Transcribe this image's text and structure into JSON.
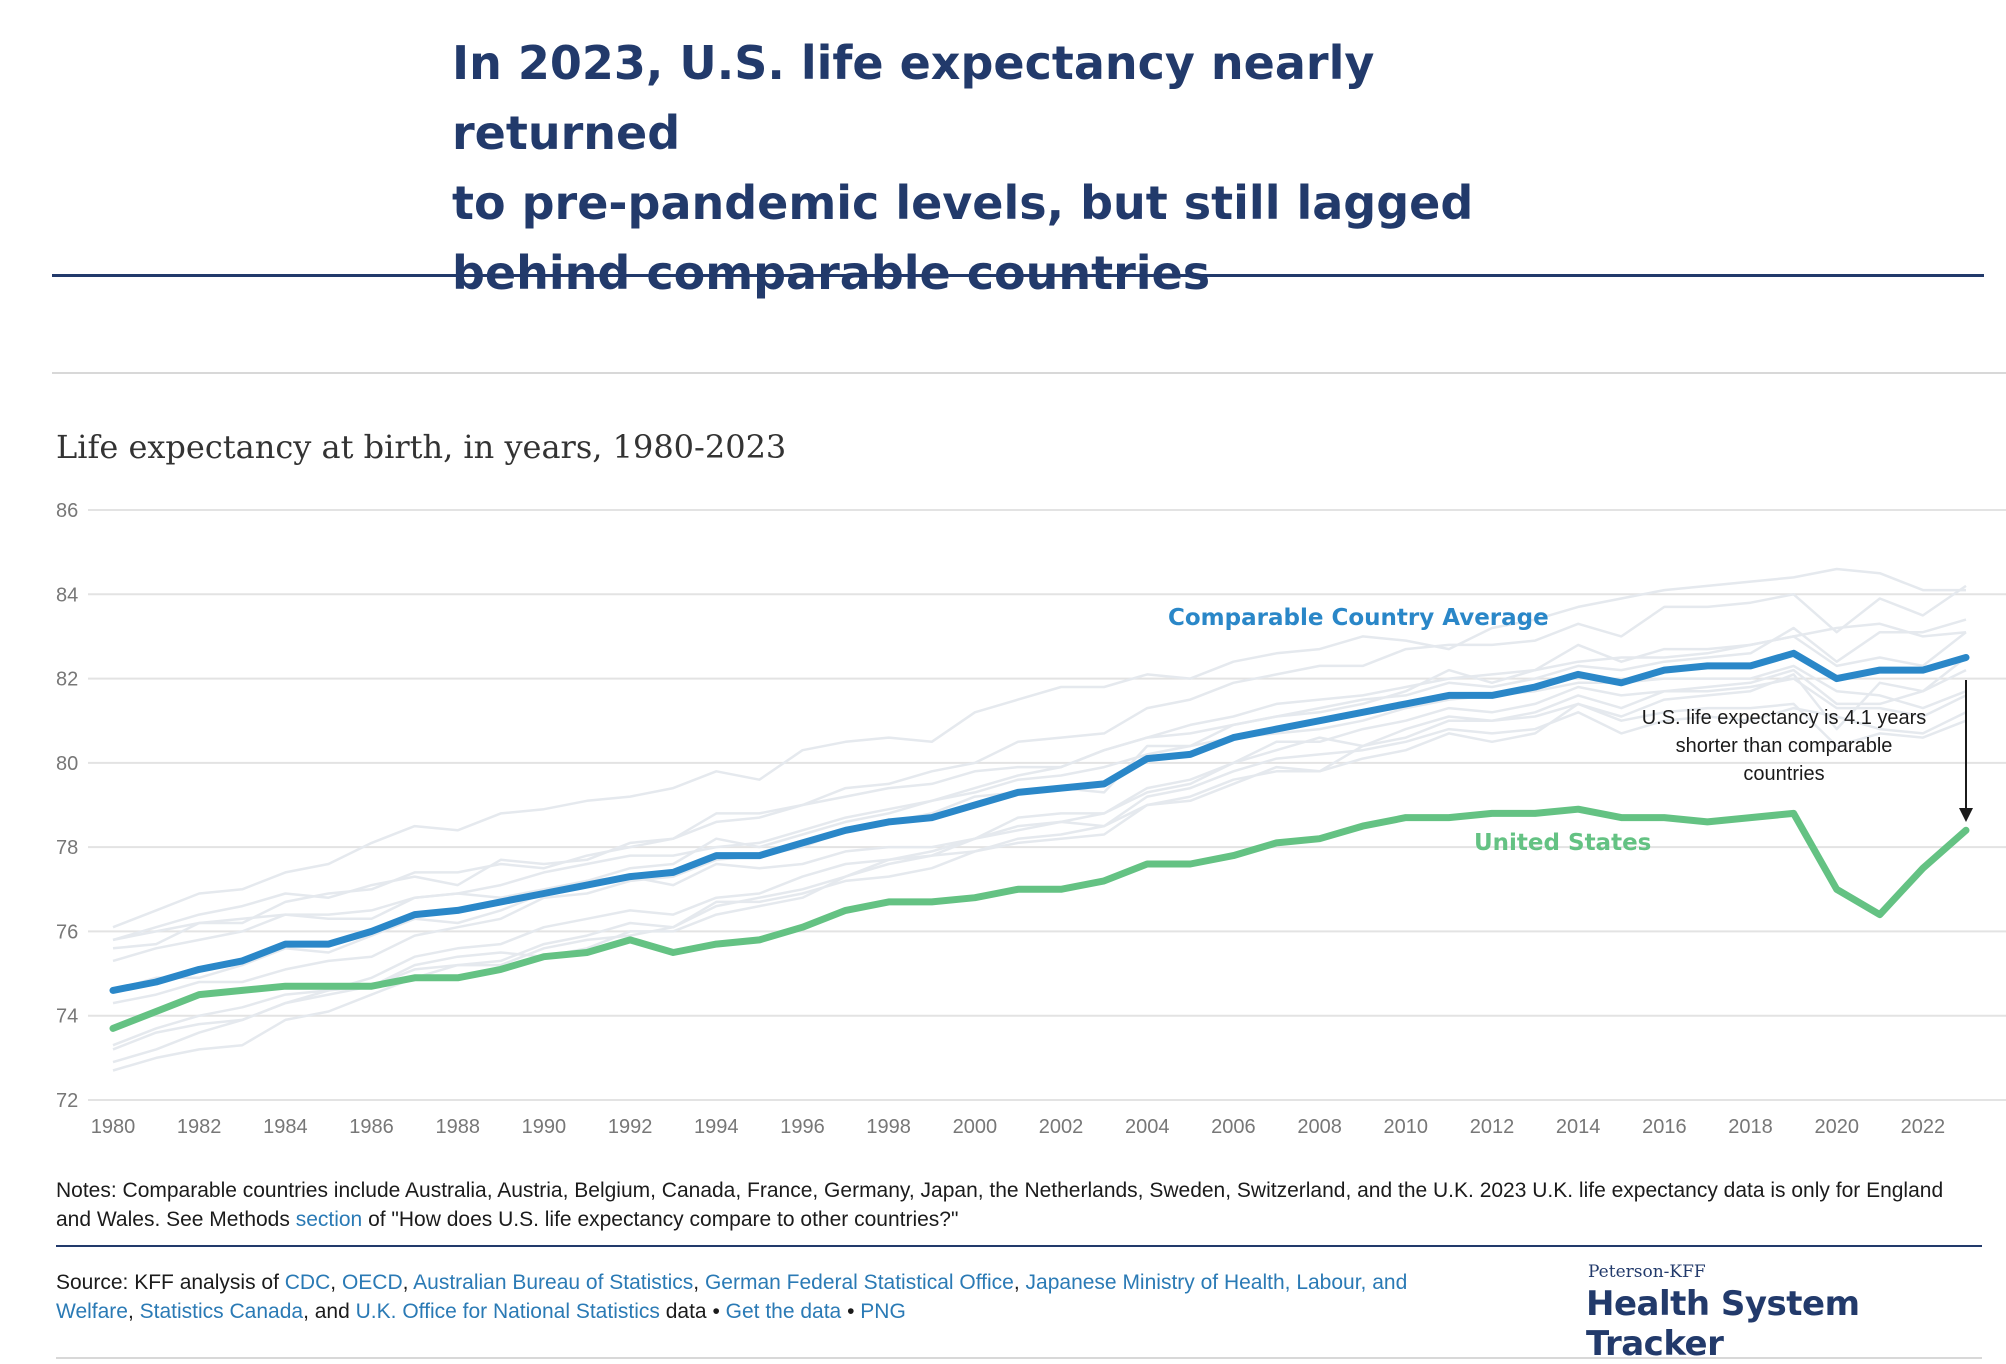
{
  "headline": {
    "line1": "In 2023, U.S. life expectancy nearly returned",
    "line2": "to pre-pandemic levels, but still lagged",
    "line3": "behind comparable countries"
  },
  "subtitle": "Life expectancy at birth, in years, 1980-2023",
  "colors": {
    "us": "#64c283",
    "average": "#2a87c8",
    "countries": "#e5e9ee",
    "headline": "#223a6b",
    "link": "#2a7ab5"
  },
  "chart_data": {
    "type": "line",
    "title": "Life expectancy at birth, in years, 1980-2023",
    "xlabel": "",
    "ylabel": "",
    "xlim": [
      1980,
      2023
    ],
    "ylim": [
      72,
      86
    ],
    "grid": true,
    "x_ticks": [
      1980,
      1982,
      1984,
      1986,
      1988,
      1990,
      1992,
      1994,
      1996,
      1998,
      2000,
      2002,
      2004,
      2006,
      2008,
      2010,
      2012,
      2014,
      2016,
      2018,
      2020,
      2022
    ],
    "x_tick_labels": [
      "1980",
      "1982",
      "1984",
      "1986",
      "1988",
      "1990",
      "1992",
      "1994",
      "1996",
      "1998",
      "2000",
      "2002",
      "2004",
      "2006",
      "2008",
      "2010",
      "2012",
      "2014",
      "2016",
      "2018",
      "2020",
      "2022"
    ],
    "y_ticks": [
      72,
      74,
      76,
      78,
      80,
      82,
      84,
      86
    ],
    "y_tick_labels": [
      "72",
      "74",
      "76",
      "78",
      "80",
      "82",
      "84",
      "86"
    ],
    "x": [
      1980,
      1981,
      1982,
      1983,
      1984,
      1985,
      1986,
      1987,
      1988,
      1989,
      1990,
      1991,
      1992,
      1993,
      1994,
      1995,
      1996,
      1997,
      1998,
      1999,
      2000,
      2001,
      2002,
      2003,
      2004,
      2005,
      2006,
      2007,
      2008,
      2009,
      2010,
      2011,
      2012,
      2013,
      2014,
      2015,
      2016,
      2017,
      2018,
      2019,
      2020,
      2021,
      2022,
      2023
    ],
    "series": [
      {
        "name": "Comparable Country Average",
        "label": "Comparable Country Average",
        "values": [
          74.6,
          74.8,
          75.1,
          75.3,
          75.7,
          75.7,
          76.0,
          76.4,
          76.5,
          76.7,
          76.9,
          77.1,
          77.3,
          77.4,
          77.8,
          77.8,
          78.1,
          78.4,
          78.6,
          78.7,
          79.0,
          79.3,
          79.4,
          79.5,
          80.1,
          80.2,
          80.6,
          80.8,
          81.0,
          81.2,
          81.4,
          81.6,
          81.6,
          81.8,
          82.1,
          81.9,
          82.2,
          82.3,
          82.3,
          82.6,
          82.0,
          82.2,
          82.2,
          82.5
        ]
      },
      {
        "name": "United States",
        "label": "United States",
        "values": [
          73.7,
          74.1,
          74.5,
          74.6,
          74.7,
          74.7,
          74.7,
          74.9,
          74.9,
          75.1,
          75.4,
          75.5,
          75.8,
          75.5,
          75.7,
          75.8,
          76.1,
          76.5,
          76.7,
          76.7,
          76.8,
          77.0,
          77.0,
          77.2,
          77.6,
          77.6,
          77.8,
          78.1,
          78.2,
          78.5,
          78.7,
          78.7,
          78.8,
          78.8,
          78.9,
          78.7,
          78.7,
          78.6,
          78.7,
          78.8,
          77.0,
          76.4,
          77.5,
          78.4
        ]
      }
    ],
    "comparable_countries": [
      {
        "name": "Australia",
        "values": [
          74.6,
          74.9,
          74.9,
          75.2,
          75.6,
          75.5,
          75.9,
          76.3,
          76.2,
          76.5,
          76.9,
          77.2,
          77.5,
          77.6,
          78.2,
          78.0,
          78.3,
          78.6,
          78.8,
          79.1,
          79.4,
          79.7,
          79.9,
          80.3,
          80.6,
          80.9,
          81.1,
          81.4,
          81.5,
          81.6,
          81.8,
          82.0,
          82.1,
          82.2,
          82.4,
          82.5,
          82.5,
          82.6,
          82.8,
          83.0,
          83.2,
          83.3,
          83.0,
          83.1
        ]
      },
      {
        "name": "Austria",
        "values": [
          72.7,
          73.0,
          73.2,
          73.3,
          73.9,
          74.1,
          74.5,
          74.9,
          75.2,
          75.2,
          75.6,
          75.8,
          75.9,
          76.1,
          76.6,
          76.8,
          77.0,
          77.3,
          77.7,
          77.9,
          78.2,
          78.7,
          78.8,
          78.8,
          79.3,
          79.5,
          80.0,
          80.3,
          80.6,
          80.4,
          80.8,
          81.1,
          81.0,
          81.2,
          81.6,
          81.3,
          81.7,
          81.7,
          81.8,
          82.0,
          81.3,
          81.3,
          81.1,
          81.6
        ]
      },
      {
        "name": "Belgium",
        "values": [
          73.3,
          73.7,
          74.0,
          74.2,
          74.5,
          74.6,
          74.9,
          75.4,
          75.6,
          75.7,
          76.1,
          76.3,
          76.5,
          76.4,
          76.8,
          76.9,
          77.3,
          77.6,
          77.7,
          77.8,
          77.9,
          78.1,
          78.2,
          78.3,
          79.0,
          79.1,
          79.5,
          79.9,
          79.8,
          80.1,
          80.3,
          80.7,
          80.5,
          80.7,
          81.4,
          81.1,
          81.5,
          81.6,
          81.7,
          82.1,
          80.8,
          81.9,
          81.7,
          82.5
        ]
      },
      {
        "name": "Canada",
        "values": [
          75.3,
          75.6,
          75.8,
          76.0,
          76.4,
          76.4,
          76.5,
          76.8,
          76.9,
          77.1,
          77.4,
          77.6,
          77.8,
          77.8,
          78.0,
          78.1,
          78.4,
          78.7,
          78.9,
          79.1,
          79.3,
          79.6,
          79.7,
          79.9,
          80.2,
          80.4,
          80.6,
          80.7,
          80.8,
          81.0,
          81.3,
          81.5,
          81.6,
          81.7,
          81.9,
          81.9,
          82.0,
          82.0,
          82.0,
          82.3,
          81.7,
          81.6,
          81.3,
          81.7
        ]
      },
      {
        "name": "France",
        "values": [
          74.3,
          74.5,
          74.8,
          74.8,
          75.1,
          75.3,
          75.4,
          75.9,
          76.1,
          76.3,
          76.8,
          76.9,
          77.2,
          77.3,
          77.7,
          77.8,
          78.0,
          78.4,
          78.6,
          78.8,
          79.2,
          79.3,
          79.4,
          79.3,
          80.4,
          80.4,
          80.9,
          81.1,
          81.2,
          81.4,
          81.7,
          82.2,
          81.9,
          82.2,
          82.8,
          82.4,
          82.7,
          82.7,
          82.8,
          83.0,
          82.3,
          82.5,
          82.3,
          83.1
        ]
      },
      {
        "name": "Germany",
        "values": [
          72.9,
          73.2,
          73.6,
          73.9,
          74.3,
          74.5,
          74.7,
          75.2,
          75.4,
          75.5,
          75.4,
          75.6,
          76.0,
          76.0,
          76.4,
          76.6,
          76.8,
          77.3,
          77.6,
          77.8,
          78.2,
          78.5,
          78.6,
          78.5,
          79.2,
          79.4,
          79.8,
          80.1,
          80.2,
          80.3,
          80.5,
          80.8,
          80.7,
          80.8,
          81.2,
          80.7,
          81.0,
          81.1,
          81.0,
          81.3,
          81.1,
          80.8,
          80.7,
          81.2
        ]
      },
      {
        "name": "Japan",
        "values": [
          76.1,
          76.5,
          76.9,
          77.0,
          77.4,
          77.6,
          78.1,
          78.5,
          78.4,
          78.8,
          78.9,
          79.1,
          79.2,
          79.4,
          79.8,
          79.6,
          80.3,
          80.5,
          80.6,
          80.5,
          81.2,
          81.5,
          81.8,
          81.8,
          82.1,
          82.0,
          82.4,
          82.6,
          82.7,
          83.0,
          82.9,
          82.7,
          83.2,
          83.4,
          83.7,
          83.9,
          84.1,
          84.2,
          84.3,
          84.4,
          84.6,
          84.5,
          84.1,
          84.1
        ]
      },
      {
        "name": "Netherlands",
        "values": [
          75.8,
          76.0,
          76.2,
          76.3,
          76.4,
          76.3,
          76.3,
          76.8,
          76.9,
          76.8,
          77.0,
          77.2,
          77.3,
          77.1,
          77.6,
          77.5,
          77.6,
          77.9,
          78.0,
          78.0,
          78.2,
          78.4,
          78.6,
          78.8,
          79.4,
          79.6,
          80.0,
          80.5,
          80.5,
          80.8,
          81.0,
          81.3,
          81.2,
          81.4,
          81.8,
          81.6,
          81.7,
          81.8,
          81.9,
          82.2,
          81.4,
          81.4,
          81.7,
          82.2
        ]
      },
      {
        "name": "Sweden",
        "values": [
          75.8,
          76.1,
          76.4,
          76.6,
          76.9,
          76.8,
          77.1,
          77.3,
          77.1,
          77.7,
          77.6,
          77.7,
          78.1,
          78.2,
          78.8,
          78.8,
          79.0,
          79.2,
          79.4,
          79.5,
          79.8,
          79.9,
          79.9,
          80.3,
          80.6,
          80.7,
          80.9,
          81.1,
          81.3,
          81.5,
          81.6,
          81.9,
          81.8,
          82.0,
          82.3,
          82.2,
          82.4,
          82.5,
          82.6,
          83.2,
          82.4,
          83.1,
          83.1,
          83.4
        ]
      },
      {
        "name": "Switzerland",
        "values": [
          75.6,
          75.7,
          76.2,
          76.2,
          76.7,
          76.9,
          77.0,
          77.4,
          77.4,
          77.6,
          77.5,
          77.8,
          78.0,
          78.2,
          78.6,
          78.7,
          79.0,
          79.4,
          79.5,
          79.8,
          80.0,
          80.5,
          80.6,
          80.7,
          81.3,
          81.5,
          81.9,
          82.1,
          82.3,
          82.3,
          82.7,
          82.8,
          82.8,
          82.9,
          83.3,
          83.0,
          83.7,
          83.7,
          83.8,
          84.0,
          83.1,
          83.9,
          83.5,
          84.2
        ]
      },
      {
        "name": "U.K.",
        "values": [
          73.2,
          73.6,
          73.8,
          73.9,
          74.3,
          74.6,
          74.7,
          75.1,
          75.2,
          75.3,
          75.7,
          75.9,
          76.2,
          76.1,
          76.7,
          76.7,
          76.9,
          77.2,
          77.3,
          77.5,
          77.9,
          78.2,
          78.3,
          78.5,
          79.0,
          79.2,
          79.6,
          79.8,
          79.8,
          80.4,
          80.6,
          81.0,
          81.0,
          81.1,
          81.4,
          81.0,
          81.2,
          81.3,
          81.3,
          81.4,
          80.4,
          80.7,
          80.6,
          81.0
        ]
      }
    ],
    "annotations": [
      {
        "line1": "U.S. life expectancy is 4.1 years",
        "line2": "shorter than comparable",
        "line3": "countries"
      }
    ]
  },
  "notes": {
    "prefix": "Notes: Comparable countries include Australia, Austria, Belgium, Canada, France, Germany, Japan, the Netherlands, Sweden, Switzerland, and the U.K. 2023 U.K. life expectancy data is only for England and Wales. See Methods ",
    "link": "section",
    "suffix": " of \"How does U.S. life expectancy compare to other countries?\""
  },
  "source": {
    "prefix": "Source: KFF analysis of ",
    "cdc": "CDC",
    "oecd": "OECD",
    "abs": "Australian Bureau of Statistics",
    "destatis": "German Federal Statistical Office",
    "mhlw": "Japanese Ministry of Health, Labour, and Welfare",
    "statcan": "Statistics Canada",
    "and": "and",
    "ons": "U.K. Office for National Statistics",
    "data_word": "data",
    "bullet": "•",
    "get_data": "Get the data",
    "png": "PNG"
  },
  "brand": {
    "small": "Peterson-KFF",
    "big": "Health System Tracker"
  }
}
